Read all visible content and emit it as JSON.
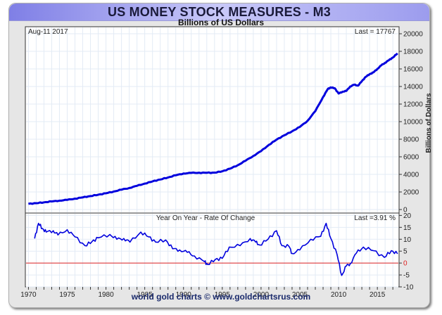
{
  "header": {
    "title": "US MONEY STOCK MEASURES - M3",
    "subtitle": "Billions of US Dollars"
  },
  "footer": "world gold charts © www.goldchartsrus.com",
  "chart_data": [
    {
      "type": "line",
      "title": "US MONEY STOCK MEASURES - M3",
      "subtitle": "Billions of US Dollars",
      "date_label": "Aug-11  2017",
      "last_label": "Last = 17767",
      "ylabel": "Billions of Dollars",
      "xlabel": "",
      "xlim": [
        1969.6,
        2017.8
      ],
      "ylim": [
        -400,
        20800
      ],
      "yticks": [
        0,
        2000,
        4000,
        6000,
        8000,
        10000,
        12000,
        14000,
        16000,
        18000,
        20000
      ],
      "grid": true,
      "color": "#0000dd",
      "series": [
        {
          "name": "M3",
          "x": [
            1970,
            1971,
            1972,
            1973,
            1974,
            1975,
            1976,
            1977,
            1978,
            1979,
            1980,
            1981,
            1982,
            1983,
            1984,
            1985,
            1986,
            1987,
            1988,
            1989,
            1990,
            1991,
            1992,
            1993,
            1994,
            1995,
            1996,
            1997,
            1998,
            1999,
            2000,
            2001,
            2002,
            2003,
            2004,
            2005,
            2006,
            2007,
            2008,
            2008.6,
            2009,
            2009.5,
            2010,
            2010.5,
            2011,
            2011.5,
            2012,
            2012.5,
            2013,
            2013.5,
            2014,
            2014.5,
            2015,
            2015.5,
            2016,
            2016.5,
            2017,
            2017.6
          ],
          "values": [
            650,
            720,
            820,
            920,
            1010,
            1100,
            1240,
            1380,
            1530,
            1690,
            1850,
            2050,
            2260,
            2450,
            2700,
            2950,
            3200,
            3420,
            3650,
            3900,
            4100,
            4170,
            4190,
            4180,
            4200,
            4350,
            4650,
            5050,
            5550,
            6100,
            6650,
            7350,
            7950,
            8450,
            8900,
            9400,
            10100,
            11200,
            12800,
            13700,
            13900,
            13800,
            13200,
            13400,
            13500,
            14000,
            14200,
            14100,
            14600,
            15100,
            15400,
            15600,
            16000,
            16400,
            16700,
            17000,
            17300,
            17767
          ]
        }
      ]
    },
    {
      "type": "line",
      "title": "Year On Year - Rate Of Change",
      "last_label": "Last =3.91 %",
      "xlim": [
        1969.6,
        2017.8
      ],
      "ylim": [
        -10,
        21
      ],
      "yticks": [
        -10,
        -5,
        0,
        5,
        10,
        15,
        20
      ],
      "xticks": [
        1970,
        1975,
        1980,
        1985,
        1990,
        1995,
        2000,
        2005,
        2010,
        2015
      ],
      "zero_line_color": "#dd2222",
      "color": "#0000dd",
      "grid": true,
      "series": [
        {
          "name": "YoY % change",
          "x": [
            1970.8,
            1971.3,
            1971.8,
            1972.3,
            1973.2,
            1973.8,
            1975,
            1976,
            1977.3,
            1978.2,
            1979,
            1980.5,
            1981.4,
            1982.3,
            1983.1,
            1984.5,
            1985.5,
            1986.4,
            1987.7,
            1988.6,
            1989.5,
            1990.5,
            1991.4,
            1992.7,
            1993.1,
            1994.1,
            1995,
            1995.9,
            1997.3,
            1998.6,
            1999.3,
            1999.8,
            2000.9,
            2002,
            2002.7,
            2003.6,
            2004,
            2005,
            2006.4,
            2007.7,
            2008.4,
            2009,
            2009.8,
            2010.4,
            2011,
            2011.5,
            2012.3,
            2013.2,
            2014.5,
            2015.9,
            2016.8,
            2017.6
          ],
          "values": [
            10.3,
            16.7,
            14.5,
            13,
            13.6,
            11.8,
            14,
            11,
            7.3,
            9,
            10.6,
            12,
            10,
            10.3,
            8.8,
            13,
            11,
            8.8,
            9.7,
            6,
            5.5,
            4.5,
            3,
            0.6,
            -0.6,
            1.5,
            2,
            6.7,
            7.3,
            10.3,
            8.8,
            7.6,
            10,
            13.6,
            7.3,
            7,
            4,
            5.5,
            10,
            11.2,
            16.7,
            10.3,
            3.6,
            -5.2,
            -1.2,
            -0.3,
            4.2,
            6.7,
            5.2,
            2.4,
            5.2,
            3.91
          ]
        }
      ]
    }
  ]
}
